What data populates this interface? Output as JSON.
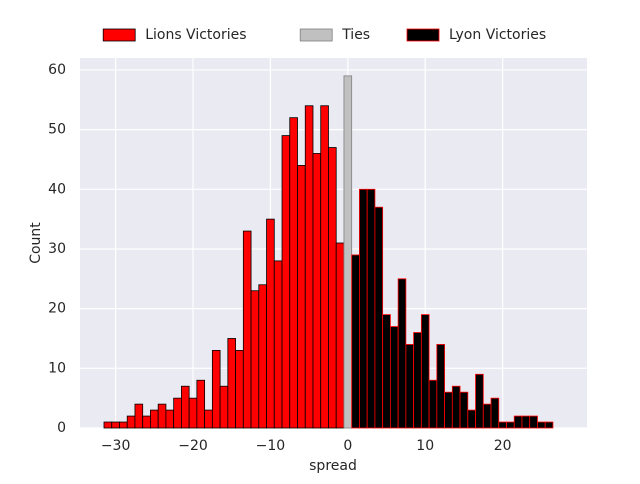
{
  "chart_data": {
    "type": "histogram",
    "x_label": "spread",
    "y_label": "Count",
    "series": [
      {
        "name": "Lions Victories",
        "color": "#ff0000",
        "edgecolor": "#000000",
        "bins": [
          -31.5,
          -30.5,
          -29.5,
          -28.5,
          -27.5,
          -26.5,
          -25.5,
          -24.5,
          -23.5,
          -22.5,
          -21.5,
          -20.5,
          -19.5,
          -18.5,
          -17.5,
          -16.5,
          -15.5,
          -14.5,
          -13.5,
          -12.5,
          -11.5,
          -10.5,
          -9.5,
          -8.5,
          -7.5,
          -6.5,
          -5.5,
          -4.5,
          -3.5,
          -2.5,
          -1.5,
          -0.5
        ],
        "values": [
          1,
          1,
          1,
          2,
          4,
          2,
          3,
          4,
          3,
          5,
          7,
          5,
          8,
          3,
          13,
          7,
          15,
          13,
          33,
          23,
          24,
          35,
          28,
          49,
          52,
          44,
          54,
          46,
          54,
          47,
          31
        ]
      },
      {
        "name": "Ties",
        "color": "#c0c0c0",
        "edgecolor": "#808080",
        "bins": [
          -0.5,
          0.5
        ],
        "values": [
          59
        ]
      },
      {
        "name": "Lyon Victories",
        "color": "#000000",
        "edgecolor": "#ff0000",
        "bins": [
          0.5,
          1.5,
          2.5,
          3.5,
          4.5,
          5.5,
          6.5,
          7.5,
          8.5,
          9.5,
          10.5,
          11.5,
          12.5,
          13.5,
          14.5,
          15.5,
          16.5,
          17.5,
          18.5,
          19.5,
          20.5,
          21.5,
          22.5,
          23.5,
          24.5,
          25.5,
          26.5
        ],
        "values": [
          29,
          40,
          40,
          37,
          19,
          17,
          25,
          14,
          16,
          19,
          8,
          14,
          6,
          7,
          6,
          3,
          9,
          4,
          5,
          1,
          1,
          2,
          2,
          2,
          1,
          1
        ]
      }
    ],
    "xlim": [
      -34.6,
      30.9
    ],
    "ylim": [
      0,
      62
    ],
    "xticks": [
      {
        "value": -30,
        "label": "−30"
      },
      {
        "value": -20,
        "label": "−20"
      },
      {
        "value": -10,
        "label": "−10"
      },
      0,
      10,
      20
    ],
    "yticks": [
      0,
      10,
      20,
      30,
      40,
      50,
      60
    ],
    "grid": true,
    "legend": "top"
  }
}
